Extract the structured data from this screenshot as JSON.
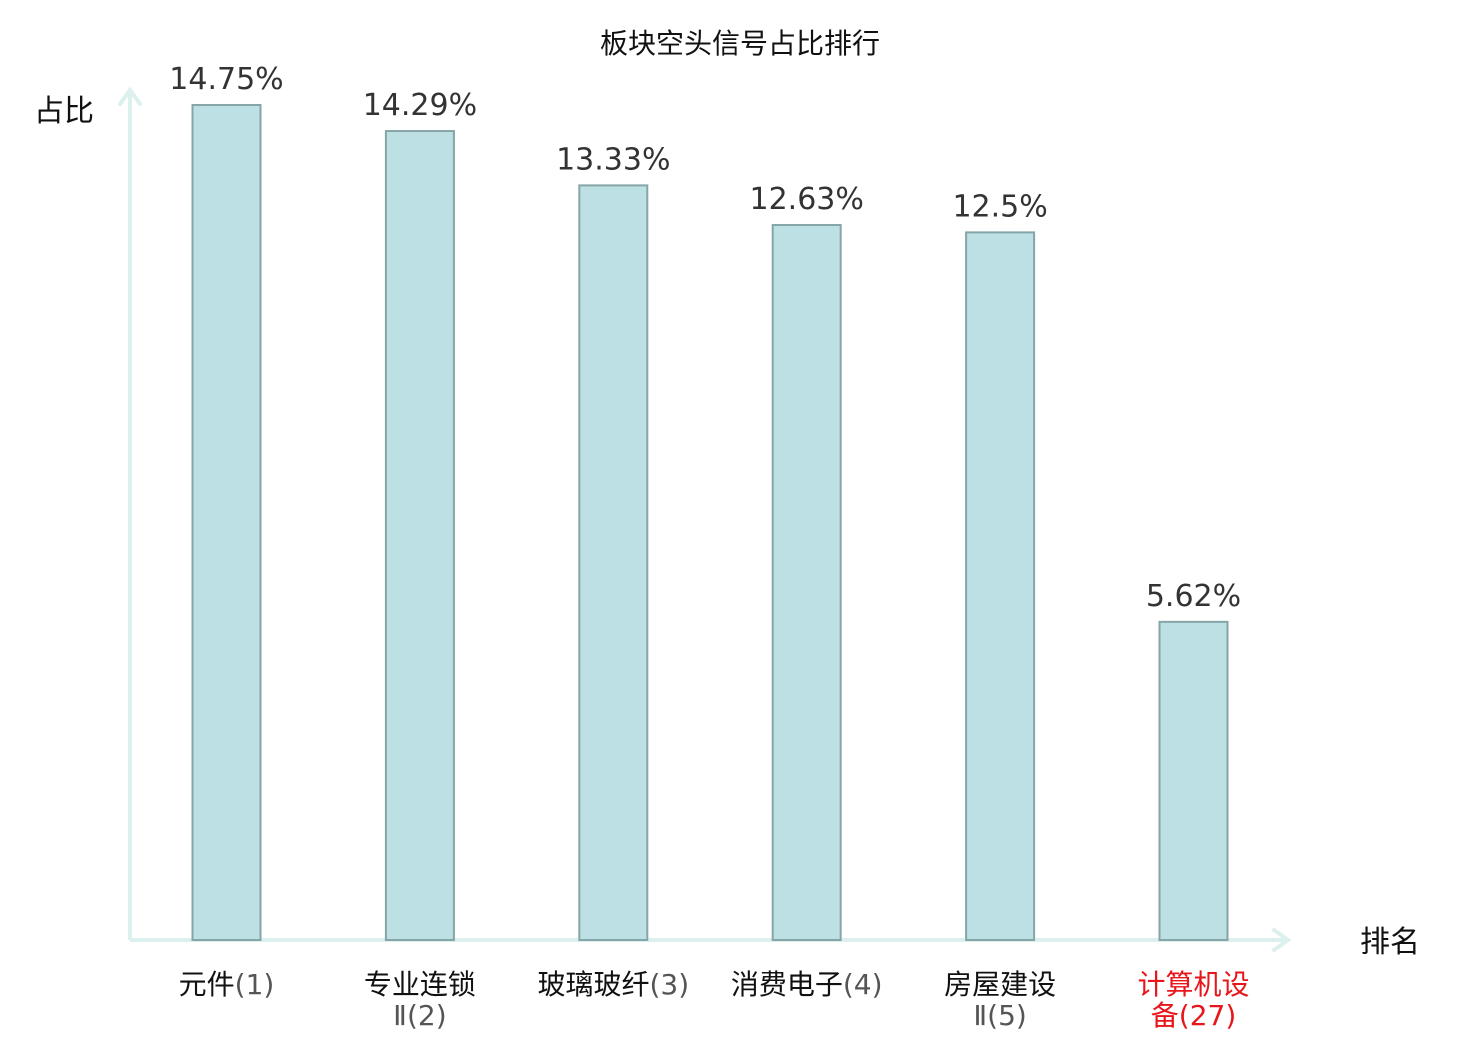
{
  "chart_data": {
    "type": "bar",
    "title": "板块空头信号占比排行",
    "ylabel": "占比",
    "xlabel": "排名",
    "categories": [
      {
        "lines": [
          {
            "name": "元件",
            "rank": "(1)"
          }
        ],
        "highlight": false
      },
      {
        "lines": [
          {
            "name": "专业连锁",
            "rank": ""
          },
          {
            "name": "",
            "rank": "Ⅱ(2)"
          }
        ],
        "highlight": false
      },
      {
        "lines": [
          {
            "name": "玻璃玻纤",
            "rank": "(3)"
          }
        ],
        "highlight": false
      },
      {
        "lines": [
          {
            "name": "消费电子",
            "rank": "(4)"
          }
        ],
        "highlight": false
      },
      {
        "lines": [
          {
            "name": "房屋建设",
            "rank": ""
          },
          {
            "name": "",
            "rank": "Ⅱ(5)"
          }
        ],
        "highlight": false
      },
      {
        "lines": [
          {
            "name": "计算机设",
            "rank": ""
          },
          {
            "name": "备",
            "rank": "(27)"
          }
        ],
        "highlight": true
      }
    ],
    "values": [
      14.75,
      14.29,
      13.33,
      12.63,
      12.5,
      5.62
    ],
    "value_labels": [
      "14.75%",
      "14.29%",
      "13.33%",
      "12.63%",
      "12.5%",
      "5.62%"
    ],
    "ylim": [
      0,
      14.75
    ],
    "grid": false,
    "colors": {
      "bar_fill": "#bce0e3",
      "bar_stroke": "#86a5a7",
      "axis": "#dcf0ed",
      "highlight_text": "#e8161b",
      "normal_text": "#111111",
      "rank_text": "#555555"
    }
  }
}
